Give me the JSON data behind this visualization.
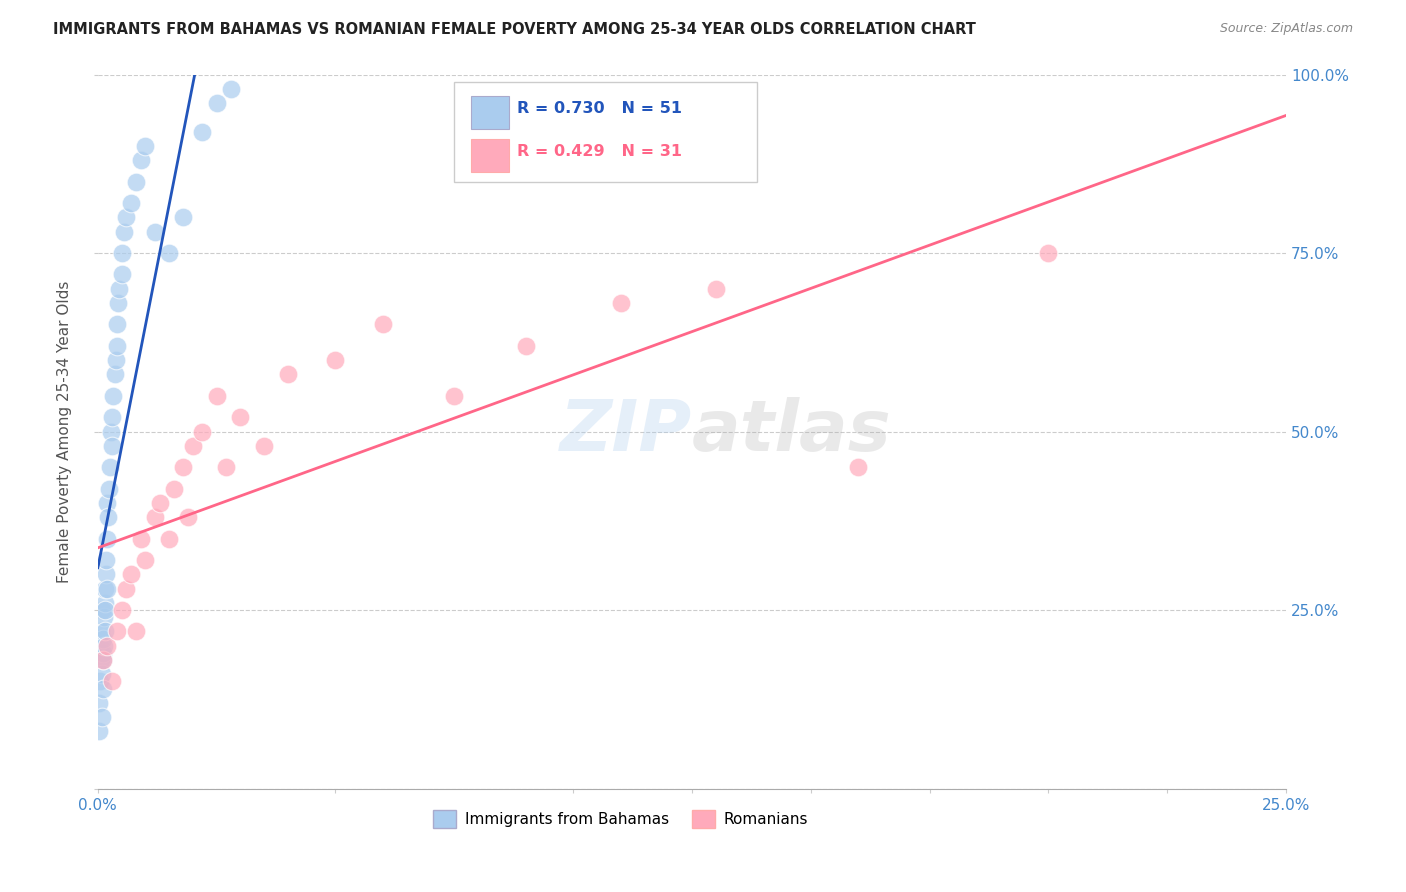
{
  "title": "IMMIGRANTS FROM BAHAMAS VS ROMANIAN FEMALE POVERTY AMONG 25-34 YEAR OLDS CORRELATION CHART",
  "source": "Source: ZipAtlas.com",
  "ylabel": "Female Poverty Among 25-34 Year Olds",
  "blue_color": "#AACCEE",
  "pink_color": "#FFAABB",
  "blue_line_color": "#2255BB",
  "pink_line_color": "#FF6688",
  "legend_text_blue": "R = 0.730   N = 51",
  "legend_text_pink": "R = 0.429   N = 31",
  "legend_series_blue": "Immigrants from Bahamas",
  "legend_series_pink": "Romanians",
  "right_tick_color": "#4488CC",
  "watermark": "ZIPatlas",
  "xmin": 0.0,
  "xmax": 0.25,
  "ymin": 0.0,
  "ymax": 1.0,
  "bahamas_x": [
    0.0002,
    0.0003,
    0.0005,
    0.0005,
    0.0006,
    0.0007,
    0.0008,
    0.0008,
    0.0009,
    0.001,
    0.001,
    0.001,
    0.001,
    0.0012,
    0.0013,
    0.0014,
    0.0015,
    0.0015,
    0.0016,
    0.0017,
    0.0018,
    0.002,
    0.002,
    0.002,
    0.0022,
    0.0023,
    0.0025,
    0.0027,
    0.003,
    0.003,
    0.0032,
    0.0035,
    0.0038,
    0.004,
    0.004,
    0.0042,
    0.0045,
    0.005,
    0.005,
    0.0055,
    0.006,
    0.007,
    0.008,
    0.009,
    0.01,
    0.012,
    0.015,
    0.018,
    0.022,
    0.025,
    0.028
  ],
  "bahamas_y": [
    0.12,
    0.08,
    0.15,
    0.2,
    0.18,
    0.22,
    0.1,
    0.25,
    0.16,
    0.14,
    0.19,
    0.21,
    0.18,
    0.24,
    0.2,
    0.22,
    0.26,
    0.28,
    0.25,
    0.3,
    0.32,
    0.28,
    0.35,
    0.4,
    0.38,
    0.42,
    0.45,
    0.5,
    0.52,
    0.48,
    0.55,
    0.58,
    0.6,
    0.62,
    0.65,
    0.68,
    0.7,
    0.72,
    0.75,
    0.78,
    0.8,
    0.82,
    0.85,
    0.88,
    0.9,
    0.78,
    0.75,
    0.8,
    0.92,
    0.96,
    0.98
  ],
  "romanian_x": [
    0.001,
    0.002,
    0.003,
    0.004,
    0.005,
    0.006,
    0.007,
    0.008,
    0.009,
    0.01,
    0.012,
    0.013,
    0.015,
    0.016,
    0.018,
    0.019,
    0.02,
    0.022,
    0.025,
    0.027,
    0.03,
    0.035,
    0.04,
    0.05,
    0.06,
    0.075,
    0.09,
    0.11,
    0.13,
    0.16,
    0.2
  ],
  "romanian_y": [
    0.18,
    0.2,
    0.15,
    0.22,
    0.25,
    0.28,
    0.3,
    0.22,
    0.35,
    0.32,
    0.38,
    0.4,
    0.35,
    0.42,
    0.45,
    0.38,
    0.48,
    0.5,
    0.55,
    0.45,
    0.52,
    0.48,
    0.58,
    0.6,
    0.65,
    0.55,
    0.62,
    0.68,
    0.7,
    0.45,
    0.75
  ]
}
